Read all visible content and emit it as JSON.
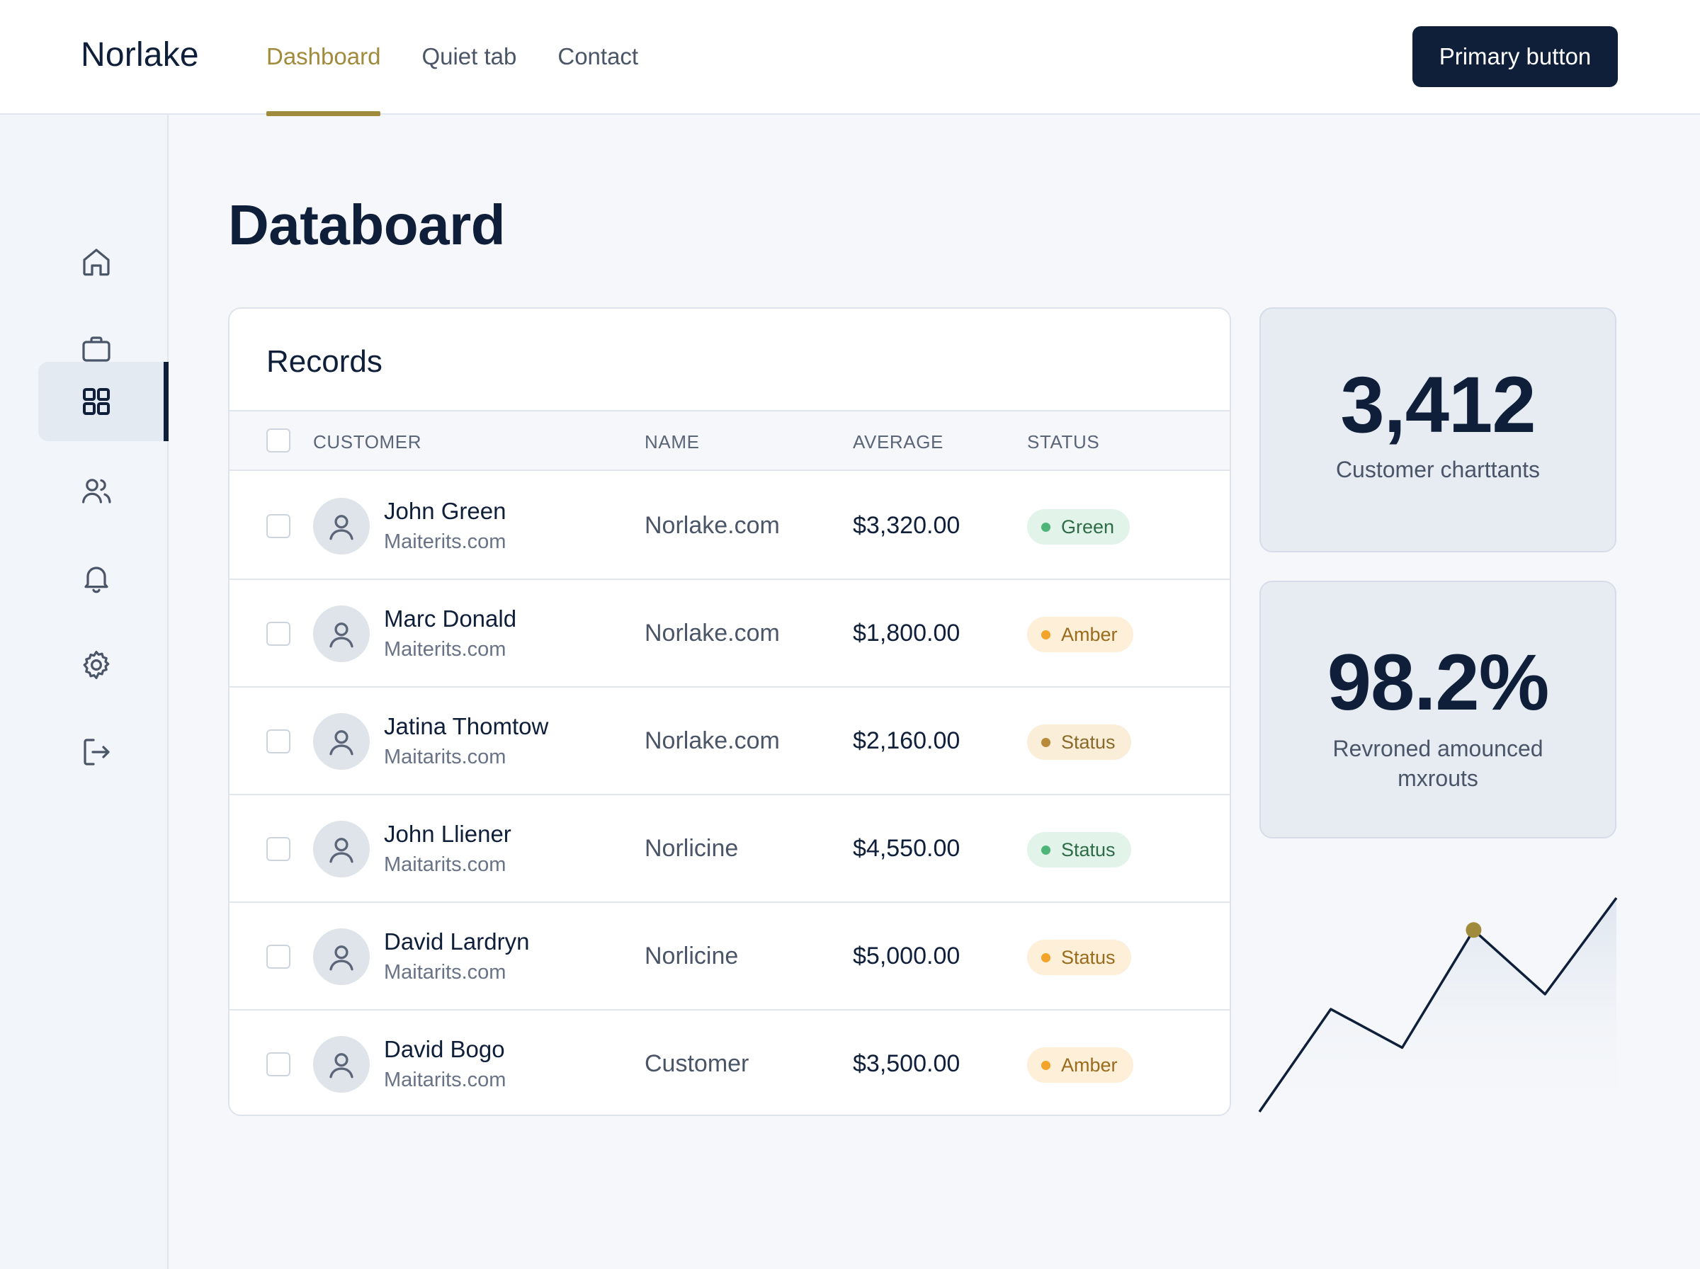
{
  "header": {
    "brand": "Norlake",
    "tabs": [
      {
        "label": "Dashboard",
        "active": true
      },
      {
        "label": "Quiet tab",
        "active": false
      },
      {
        "label": "Contact",
        "active": false
      }
    ],
    "primary_button": "Primary button"
  },
  "sidebar": {
    "items": [
      {
        "icon": "home-icon",
        "active": false
      },
      {
        "icon": "briefcase-icon",
        "active": false
      },
      {
        "icon": "grid-icon",
        "active": true
      },
      {
        "icon": "users-icon",
        "active": false
      },
      {
        "icon": "bell-icon",
        "active": false
      },
      {
        "icon": "gear-icon",
        "active": false
      },
      {
        "icon": "logout-icon",
        "active": false
      }
    ]
  },
  "page": {
    "title": "Databoard"
  },
  "records": {
    "title": "Records",
    "columns": [
      "CUSTOMER",
      "NAME",
      "AVERAGE",
      "STATUS"
    ],
    "rows": [
      {
        "customer": "John Green",
        "sub": "Maiterits.com",
        "name": "Norlake.com",
        "average": "$3,320.00",
        "status": "Green",
        "tone": "green"
      },
      {
        "customer": "Marc Donald",
        "sub": "Maiterits.com",
        "name": "Norlake.com",
        "average": "$1,800.00",
        "status": "Amber",
        "tone": "amber"
      },
      {
        "customer": "Jatina Thomtow",
        "sub": "Maitarits.com",
        "name": "Norlake.com",
        "average": "$2,160.00",
        "status": "Status",
        "tone": "tan"
      },
      {
        "customer": "John Lliener",
        "sub": "Maitarits.com",
        "name": "Norlicine",
        "average": "$4,550.00",
        "status": "Status",
        "tone": "green"
      },
      {
        "customer": "David Lardryn",
        "sub": "Maitarits.com",
        "name": "Norlicine",
        "average": "$5,000.00",
        "status": "Status",
        "tone": "amber"
      },
      {
        "customer": "David Bogo",
        "sub": "Maitarits.com",
        "name": "Customer",
        "average": "$3,500.00",
        "status": "Amber",
        "tone": "amber"
      }
    ]
  },
  "stats": [
    {
      "value": "3,412",
      "label": "Customer charttants"
    },
    {
      "value": "98.2%",
      "label": "Revroned amounced mxrouts"
    }
  ],
  "colors": {
    "navy": "#0f1f3a",
    "accent": "#a08a3c",
    "green": "#4cb577",
    "amber": "#f2a329"
  },
  "sparkline": {
    "values": [
      0,
      48,
      30,
      85,
      55,
      100
    ],
    "highlight_index": 3
  }
}
